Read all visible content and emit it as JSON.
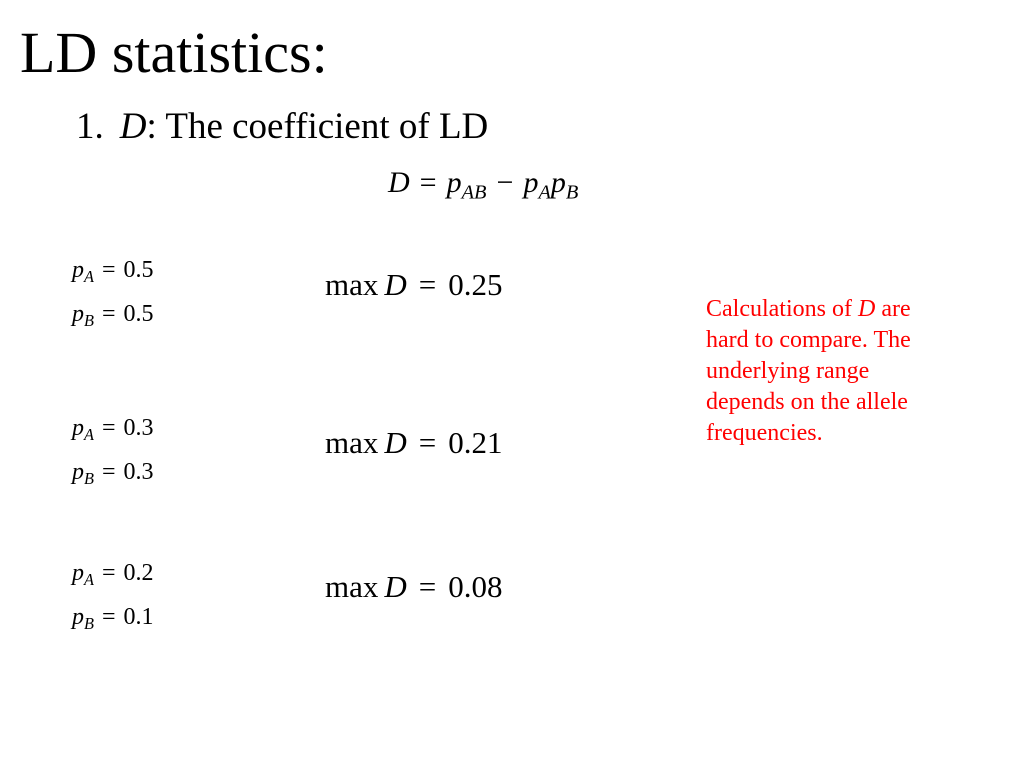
{
  "slide": {
    "title": "LD statistics:",
    "subtitle": {
      "number": "1.",
      "symbol": "D",
      "text": ": The coefficient of LD"
    },
    "formula": {
      "lhs": "D",
      "equals": "=",
      "term1_base": "p",
      "term1_sub": "AB",
      "minus": "−",
      "term2a_base": "p",
      "term2a_sub": "A",
      "term2b_base": "p",
      "term2b_sub": "B"
    },
    "examples": [
      {
        "pA": {
          "base": "p",
          "sub": "A",
          "eq": "=",
          "value": "0.5"
        },
        "pB": {
          "base": "p",
          "sub": "B",
          "eq": "=",
          "value": "0.5"
        },
        "max": {
          "fn": "max",
          "var": "D",
          "eq": "=",
          "value": "0.25"
        }
      },
      {
        "pA": {
          "base": "p",
          "sub": "A",
          "eq": "=",
          "value": "0.3"
        },
        "pB": {
          "base": "p",
          "sub": "B",
          "eq": "=",
          "value": "0.3"
        },
        "max": {
          "fn": "max",
          "var": "D",
          "eq": "=",
          "value": "0.21"
        }
      },
      {
        "pA": {
          "base": "p",
          "sub": "A",
          "eq": "=",
          "value": "0.2"
        },
        "pB": {
          "base": "p",
          "sub": "B",
          "eq": "=",
          "value": "0.1"
        },
        "max": {
          "fn": "max",
          "var": "D",
          "eq": "=",
          "value": "0.08"
        }
      }
    ],
    "note": {
      "pre": "Calculations of ",
      "symbol": "D",
      "post": " are hard to compare.  The underlying range depends on the allele frequencies.",
      "color": "#ff0000"
    }
  }
}
